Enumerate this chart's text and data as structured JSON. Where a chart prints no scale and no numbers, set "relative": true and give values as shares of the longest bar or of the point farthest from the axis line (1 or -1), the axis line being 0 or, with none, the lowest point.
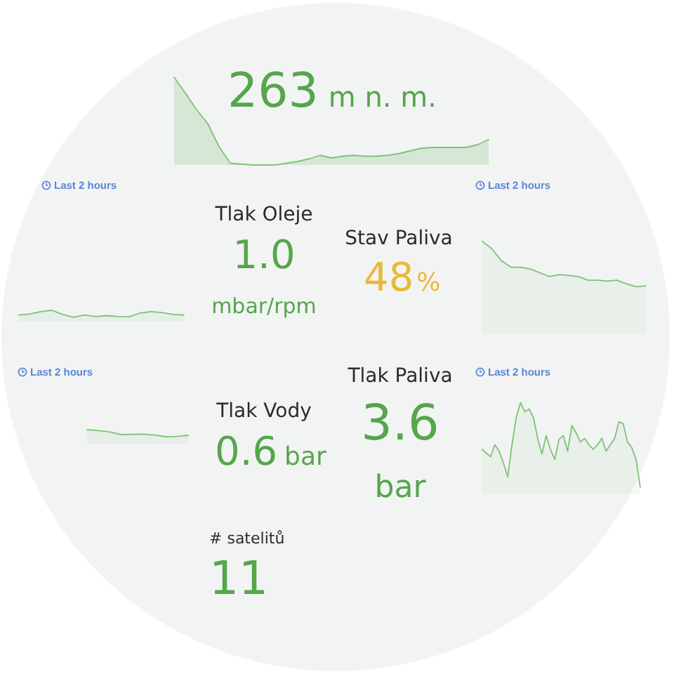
{
  "chart_data": [
    {
      "type": "other",
      "annotations": [
        "263",
        "m n. m."
      ],
      "color": "#56a64b"
    },
    {
      "type": "area",
      "relative": true,
      "categories": [
        null,
        null,
        null,
        null,
        null,
        null,
        null,
        null,
        null,
        null,
        null,
        null,
        null,
        null,
        null,
        null,
        null,
        null,
        null,
        null,
        null,
        null,
        null,
        null,
        null,
        null,
        null,
        null,
        null
      ],
      "values": [
        1.0,
        0.82,
        0.63,
        0.47,
        0.21,
        0.02,
        0.01,
        0.0,
        0.0,
        0.0,
        0.02,
        0.04,
        0.07,
        0.11,
        0.08,
        0.1,
        0.11,
        0.1,
        0.1,
        0.11,
        0.13,
        0.16,
        0.19,
        0.2,
        0.2,
        0.2,
        0.2,
        0.23,
        0.29
      ],
      "color": "#7fc277"
    },
    {
      "type": "area",
      "relative": true,
      "subtitle": "Last 2 hours",
      "categories": [
        null,
        null,
        null,
        null,
        null,
        null,
        null,
        null,
        null,
        null,
        null,
        null,
        null,
        null,
        null,
        null
      ],
      "values": [
        0.59,
        0.66,
        0.88,
        1.0,
        0.63,
        0.38,
        0.59,
        0.44,
        0.53,
        0.45,
        0.43,
        0.75,
        0.88,
        0.81,
        0.63,
        0.59
      ],
      "color": "#7fc277"
    },
    {
      "type": "other",
      "title": "Tlak Oleje",
      "annotations": [
        "1.0",
        "mbar/rpm"
      ],
      "color": "#56a64b"
    },
    {
      "type": "other",
      "title": "Stav Paliva",
      "annotations": [
        "48",
        "%"
      ],
      "color": "#eab839"
    },
    {
      "type": "area",
      "relative": true,
      "subtitle": "Last 2 hours",
      "categories": [
        null,
        null,
        null,
        null,
        null,
        null,
        null,
        null,
        null,
        null,
        null,
        null,
        null,
        null,
        null,
        null,
        null,
        null
      ],
      "values": [
        1.0,
        0.92,
        0.79,
        0.72,
        0.72,
        0.7,
        0.66,
        0.62,
        0.64,
        0.63,
        0.62,
        0.58,
        0.58,
        0.57,
        0.58,
        0.54,
        0.51,
        0.52
      ],
      "color": "#7fc277"
    },
    {
      "type": "area",
      "relative": true,
      "subtitle": "Last 2 hours",
      "categories": [
        null,
        null,
        null,
        null,
        null,
        null,
        null,
        null,
        null,
        null,
        null,
        null,
        null,
        null,
        null,
        null
      ],
      "values": [
        null,
        null,
        null,
        null,
        null,
        null,
        1.0,
        0.93,
        0.84,
        0.65,
        0.67,
        0.68,
        0.62,
        0.5,
        0.52,
        0.6
      ],
      "color": "#7fc277"
    },
    {
      "type": "other",
      "title": "Tlak Paliva",
      "annotations": [
        "3.6",
        "bar"
      ],
      "color": "#56a64b"
    },
    {
      "type": "other",
      "title": "Tlak Vody",
      "annotations": [
        "0.6",
        "bar"
      ],
      "color": "#56a64b"
    },
    {
      "type": "area",
      "relative": true,
      "subtitle": "Last 2 hours",
      "categories": [
        null,
        null,
        null,
        null,
        null,
        null,
        null,
        null,
        null,
        null,
        null,
        null,
        null,
        null,
        null,
        null,
        null,
        null,
        null,
        null,
        null,
        null,
        null,
        null,
        null,
        null,
        null,
        null,
        null,
        null,
        null,
        null,
        null,
        null,
        null,
        null,
        null,
        null
      ],
      "values": [
        0.49,
        0.45,
        0.41,
        0.54,
        0.47,
        0.34,
        0.19,
        0.54,
        0.84,
        1.0,
        0.9,
        0.93,
        0.84,
        0.61,
        0.44,
        0.64,
        0.49,
        0.38,
        0.6,
        0.64,
        0.47,
        0.75,
        0.67,
        0.57,
        0.61,
        0.54,
        0.49,
        0.54,
        0.61,
        0.47,
        0.54,
        0.61,
        0.79,
        0.77,
        0.57,
        0.51,
        0.38,
        0.08
      ],
      "color": "#7fc277"
    },
    {
      "type": "other",
      "title": "# satelitů",
      "annotations": [
        "11"
      ],
      "color": "#56a64b"
    }
  ]
}
